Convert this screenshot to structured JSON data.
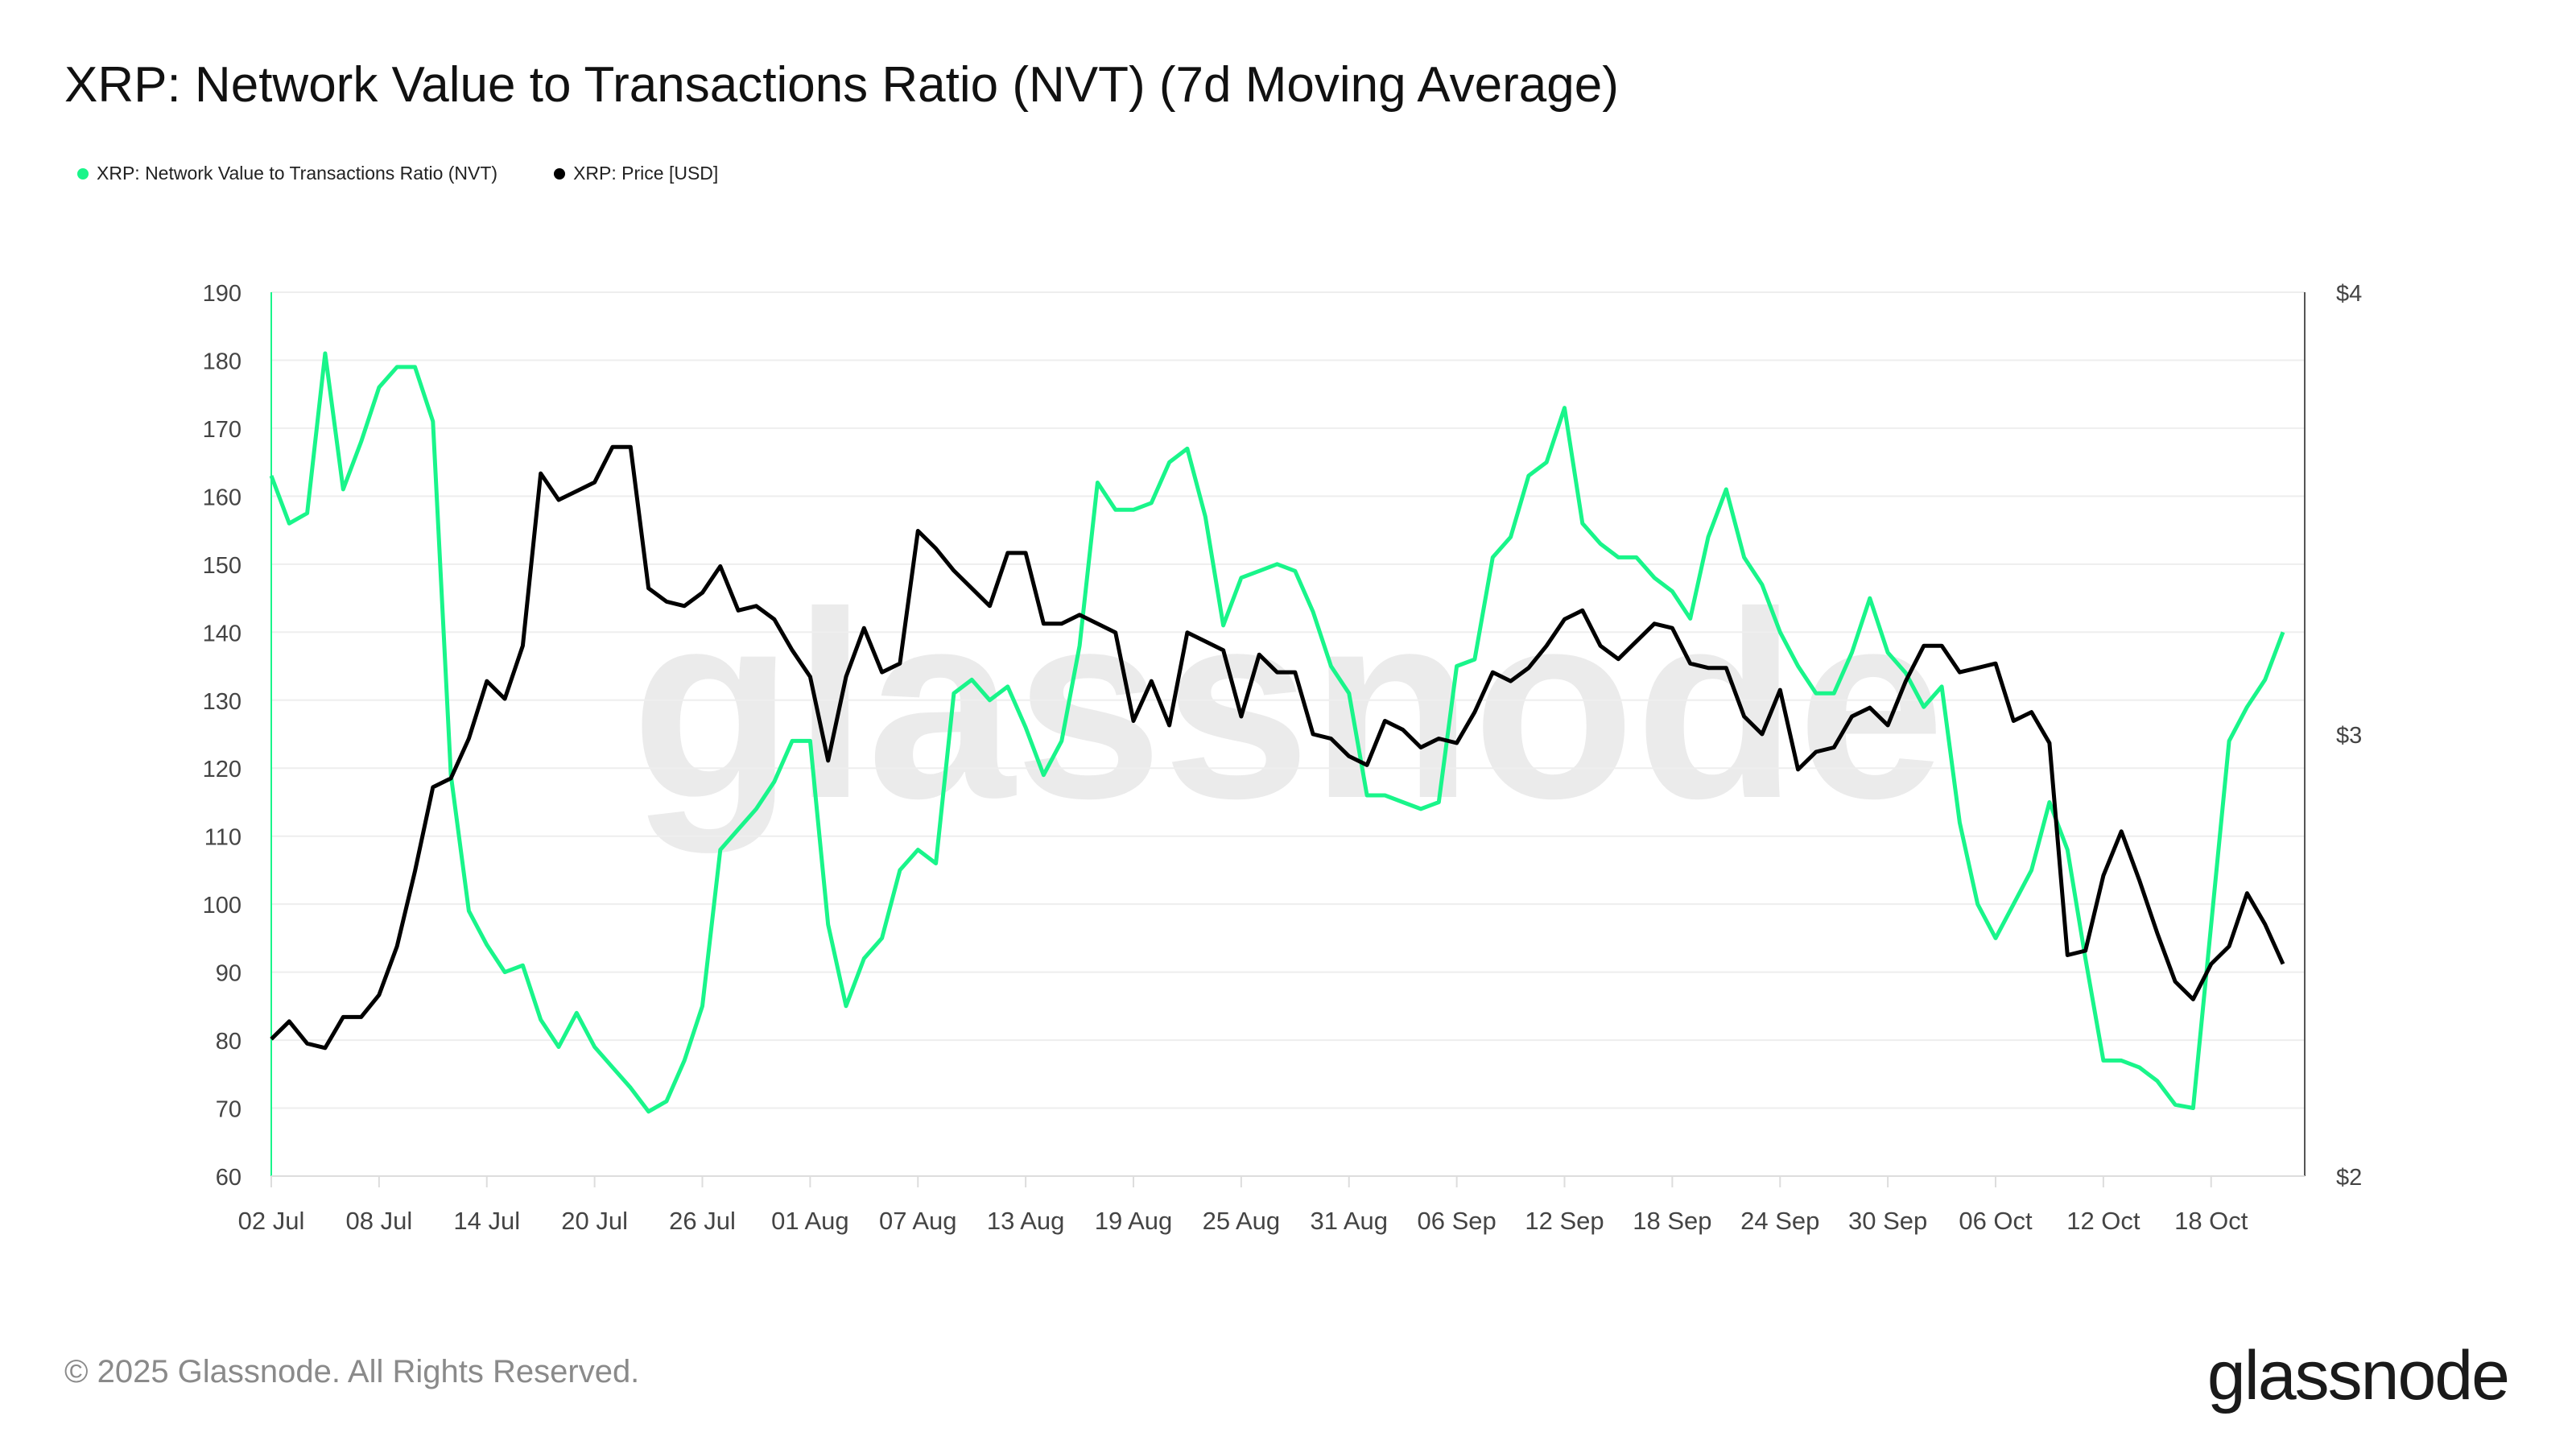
{
  "title": "XRP: Network Value to Transactions Ratio (NVT) (7d Moving Average)",
  "footer": "© 2025 Glassnode. All Rights Reserved.",
  "logo_text": "glassnode",
  "watermark": "glassnode",
  "colors": {
    "nvt": "#19f58a",
    "price": "#000000",
    "grid": "#eeeeee",
    "watermark": "#ebebeb"
  },
  "chart_data": {
    "type": "line",
    "title": "XRP: Network Value to Transactions Ratio (NVT) (7d Moving Average)",
    "legend_position": "top-left",
    "grid": true,
    "x_ticks": [
      "02 Jul",
      "08 Jul",
      "14 Jul",
      "20 Jul",
      "26 Jul",
      "01 Aug",
      "07 Aug",
      "13 Aug",
      "19 Aug",
      "25 Aug",
      "31 Aug",
      "06 Sep",
      "12 Sep",
      "18 Sep",
      "24 Sep",
      "30 Sep",
      "06 Oct",
      "12 Oct",
      "18 Oct"
    ],
    "y_left": {
      "ylim": [
        60,
        190
      ],
      "ticks": [
        "60",
        "70",
        "80",
        "90",
        "100",
        "110",
        "120",
        "130",
        "140",
        "150",
        "160",
        "170",
        "180",
        "190"
      ]
    },
    "y_right": {
      "ylim": [
        2,
        4
      ],
      "scale": "linear",
      "ticks": [
        "$2",
        "$3",
        "$4"
      ]
    },
    "x": [
      "2025-07-02",
      "2025-07-03",
      "2025-07-04",
      "2025-07-05",
      "2025-07-06",
      "2025-07-07",
      "2025-07-08",
      "2025-07-09",
      "2025-07-10",
      "2025-07-11",
      "2025-07-12",
      "2025-07-13",
      "2025-07-14",
      "2025-07-15",
      "2025-07-16",
      "2025-07-17",
      "2025-07-18",
      "2025-07-19",
      "2025-07-20",
      "2025-07-21",
      "2025-07-22",
      "2025-07-23",
      "2025-07-24",
      "2025-07-25",
      "2025-07-26",
      "2025-07-27",
      "2025-07-28",
      "2025-07-29",
      "2025-07-30",
      "2025-07-31",
      "2025-08-01",
      "2025-08-02",
      "2025-08-03",
      "2025-08-04",
      "2025-08-05",
      "2025-08-06",
      "2025-08-07",
      "2025-08-08",
      "2025-08-09",
      "2025-08-10",
      "2025-08-11",
      "2025-08-12",
      "2025-08-13",
      "2025-08-14",
      "2025-08-15",
      "2025-08-16",
      "2025-08-17",
      "2025-08-18",
      "2025-08-19",
      "2025-08-20",
      "2025-08-21",
      "2025-08-22",
      "2025-08-23",
      "2025-08-24",
      "2025-08-25",
      "2025-08-26",
      "2025-08-27",
      "2025-08-28",
      "2025-08-29",
      "2025-08-30",
      "2025-08-31",
      "2025-09-01",
      "2025-09-02",
      "2025-09-03",
      "2025-09-04",
      "2025-09-05",
      "2025-09-06",
      "2025-09-07",
      "2025-09-08",
      "2025-09-09",
      "2025-09-10",
      "2025-09-11",
      "2025-09-12",
      "2025-09-13",
      "2025-09-14",
      "2025-09-15",
      "2025-09-16",
      "2025-09-17",
      "2025-09-18",
      "2025-09-19",
      "2025-09-20",
      "2025-09-21",
      "2025-09-22",
      "2025-09-23",
      "2025-09-24",
      "2025-09-25",
      "2025-09-26",
      "2025-09-27",
      "2025-09-28",
      "2025-09-29",
      "2025-09-30",
      "2025-10-01",
      "2025-10-02",
      "2025-10-03",
      "2025-10-04",
      "2025-10-05",
      "2025-10-06",
      "2025-10-07",
      "2025-10-08",
      "2025-10-09",
      "2025-10-10",
      "2025-10-11",
      "2025-10-12",
      "2025-10-13",
      "2025-10-14",
      "2025-10-15",
      "2025-10-16",
      "2025-10-17",
      "2025-10-18",
      "2025-10-19",
      "2025-10-20",
      "2025-10-21",
      "2025-10-22"
    ],
    "series": [
      {
        "name": "XRP: Network Value to Transactions Ratio (NVT)",
        "axis": "left",
        "values": [
          163,
          156,
          157.5,
          181,
          161,
          168,
          176,
          179,
          179,
          171,
          119,
          99,
          94,
          90,
          91,
          83,
          79,
          84,
          79,
          76,
          73,
          69.5,
          71,
          77,
          85,
          108,
          111,
          114,
          118,
          124,
          124,
          97,
          85,
          92,
          95,
          105,
          108,
          106,
          131,
          133,
          130,
          132,
          126,
          119,
          124,
          138,
          162,
          158,
          158,
          159,
          165,
          167,
          157,
          141,
          148,
          149,
          150,
          149,
          143,
          135,
          131,
          116,
          116,
          115,
          114,
          115,
          135,
          136,
          151,
          154,
          163,
          165,
          173,
          156,
          153,
          151,
          151,
          148,
          146,
          142,
          154,
          161,
          151,
          147,
          140,
          135,
          131,
          131,
          137,
          145,
          137,
          134,
          129,
          132,
          112,
          100,
          95,
          100,
          105,
          115,
          108,
          92,
          77,
          77,
          76,
          74,
          70.5,
          70,
          97,
          124,
          129,
          133,
          140
        ]
      },
      {
        "name": "XRP: Price [USD]",
        "axis": "right",
        "values": [
          2.31,
          2.35,
          2.3,
          2.29,
          2.36,
          2.36,
          2.41,
          2.52,
          2.69,
          2.88,
          2.9,
          2.99,
          3.12,
          3.08,
          3.2,
          3.59,
          3.53,
          3.55,
          3.57,
          3.65,
          3.65,
          3.33,
          3.3,
          3.29,
          3.32,
          3.38,
          3.28,
          3.29,
          3.26,
          3.19,
          3.13,
          2.94,
          3.13,
          3.24,
          3.14,
          3.16,
          3.46,
          3.42,
          3.37,
          3.33,
          3.29,
          3.41,
          3.41,
          3.25,
          3.25,
          3.27,
          3.25,
          3.23,
          3.03,
          3.12,
          3.02,
          3.23,
          3.21,
          3.19,
          3.04,
          3.18,
          3.14,
          3.14,
          3.0,
          2.99,
          2.95,
          2.93,
          3.03,
          3.01,
          2.97,
          2.99,
          2.98,
          3.05,
          3.14,
          3.12,
          3.15,
          3.2,
          3.26,
          3.28,
          3.2,
          3.17,
          3.21,
          3.25,
          3.24,
          3.16,
          3.15,
          3.15,
          3.04,
          3.0,
          3.1,
          2.92,
          2.96,
          2.97,
          3.04,
          3.06,
          3.02,
          3.12,
          3.2,
          3.2,
          3.14,
          3.15,
          3.16,
          3.03,
          3.05,
          2.98,
          2.5,
          2.51,
          2.68,
          2.78,
          2.67,
          2.55,
          2.44,
          2.4,
          2.48,
          2.52,
          2.64,
          2.57,
          2.48
        ]
      }
    ]
  }
}
